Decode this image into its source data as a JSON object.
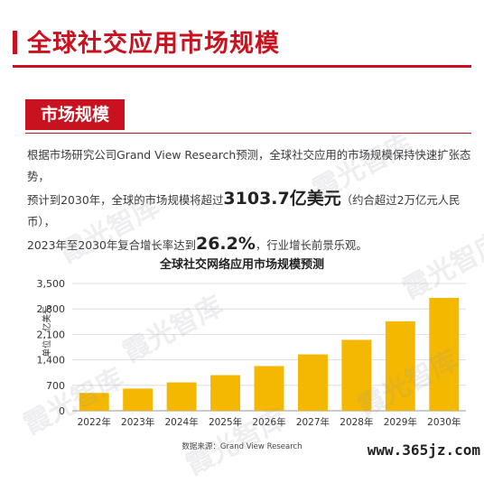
{
  "page": {
    "title": "全球社交应用市场规模",
    "section_tag": "市场规模",
    "para_1a": "根据市场研究公司Grand View Research预测，全球社交应用的市场规模保持快速扩张态势，",
    "para_2a": "预计到2030年，全球的市场规模将超过",
    "para_2b": "3103.7亿美元",
    "para_2c": "（约合超过2万亿元人民币），",
    "para_3a": "2023年至2030年复合增长率达到",
    "para_3b": "26.2%",
    "para_3c": "，行业增长前景乐观。",
    "watermark": "霞光智库",
    "site_tag": "www.365jz.com"
  },
  "colors": {
    "accent": "#c8121f",
    "bar": "#f5b800"
  },
  "chart_data": {
    "type": "bar",
    "title": "全球社交网络应用市场规模预测",
    "ylabel": "单位：亿美元",
    "source": "数据来源：Grand View Research",
    "categories": [
      "2022年",
      "2023年",
      "2024年",
      "2025年",
      "2026年",
      "2027年",
      "2028年",
      "2029年",
      "2030年"
    ],
    "values": [
      490,
      610,
      780,
      980,
      1230,
      1550,
      1950,
      2460,
      3104
    ],
    "yticks": [
      "0",
      "700",
      "1,400",
      "2,100",
      "2,800",
      "3,500"
    ],
    "ylim": [
      0,
      3500
    ],
    "grid": true
  }
}
